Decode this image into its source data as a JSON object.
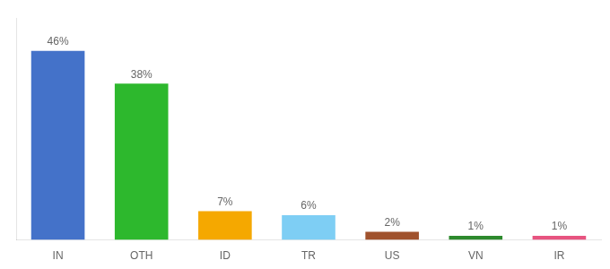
{
  "chart_data": {
    "type": "bar",
    "categories": [
      "IN",
      "OTH",
      "ID",
      "TR",
      "US",
      "VN",
      "IR"
    ],
    "values": [
      46,
      38,
      7,
      6,
      2,
      1,
      1
    ],
    "value_labels": [
      "46%",
      "38%",
      "7%",
      "6%",
      "2%",
      "1%",
      "1%"
    ],
    "colors": [
      "#4472c9",
      "#2db82d",
      "#f5a800",
      "#7ecef4",
      "#a0522d",
      "#2d8a2d",
      "#e75480"
    ],
    "ylim": [
      0,
      54
    ],
    "grid": false,
    "data_labels": true,
    "tick_labels": "x"
  }
}
